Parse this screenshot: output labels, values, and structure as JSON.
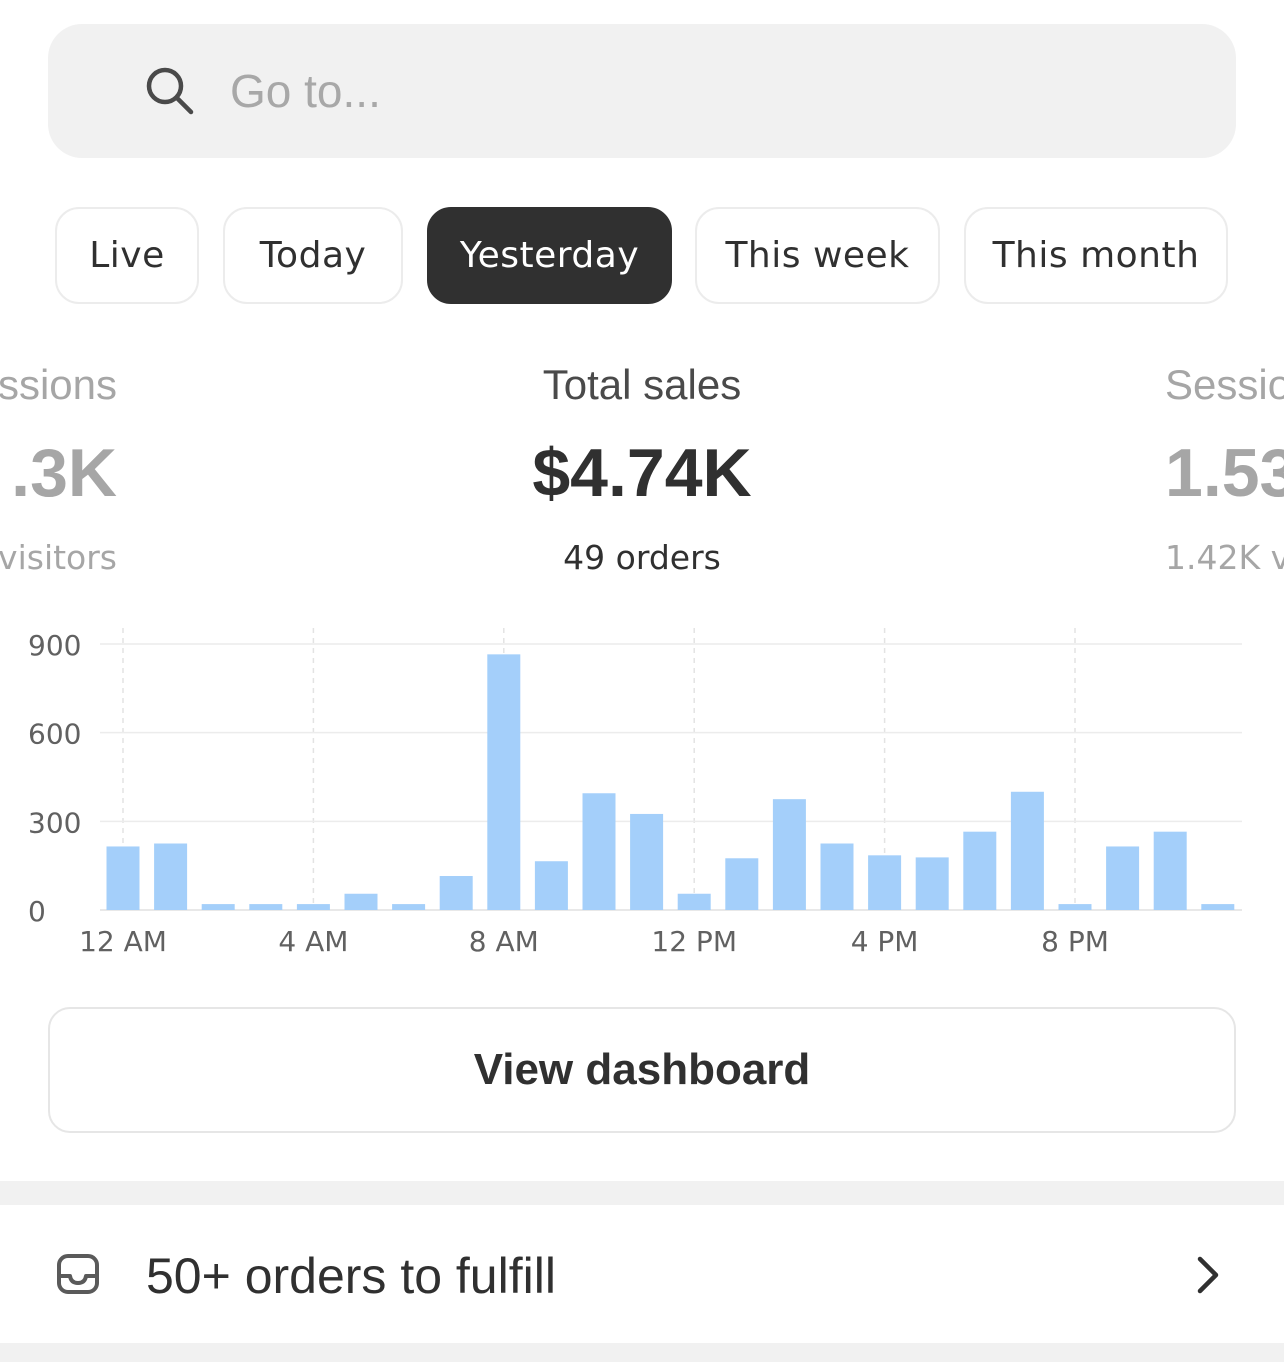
{
  "search": {
    "placeholder": "Go to..."
  },
  "tabs": [
    {
      "label": "Live",
      "active": false
    },
    {
      "label": "Today",
      "active": false
    },
    {
      "label": "Yesterday",
      "active": true
    },
    {
      "label": "This week",
      "active": false
    },
    {
      "label": "This month",
      "active": false
    }
  ],
  "metrics": {
    "left": {
      "label": "ssions",
      "value": ".3K",
      "sub": "visitors"
    },
    "center": {
      "label": "Total sales",
      "value": "$4.74K",
      "sub": "49 orders"
    },
    "right": {
      "label": "Sessio",
      "value": "1.53",
      "sub": "1.42K v"
    }
  },
  "chart_data": {
    "type": "bar",
    "categories": [
      "12 AM",
      "1 AM",
      "2 AM",
      "3 AM",
      "4 AM",
      "5 AM",
      "6 AM",
      "7 AM",
      "8 AM",
      "9 AM",
      "10 AM",
      "11 AM",
      "12 PM",
      "1 PM",
      "2 PM",
      "3 PM",
      "4 PM",
      "5 PM",
      "6 PM",
      "7 PM",
      "8 PM",
      "9 PM",
      "10 PM",
      "11 PM"
    ],
    "values": [
      215,
      225,
      20,
      20,
      20,
      55,
      20,
      115,
      865,
      165,
      395,
      325,
      55,
      175,
      375,
      225,
      185,
      178,
      265,
      400,
      20,
      215,
      265,
      20
    ],
    "ylim": [
      0,
      900
    ],
    "yticks": [
      "0",
      "300",
      "600",
      "900"
    ],
    "ytick_values": [
      0,
      300,
      600,
      900
    ],
    "xticks": [
      {
        "label": "12 AM",
        "index": 0
      },
      {
        "label": "4 AM",
        "index": 4
      },
      {
        "label": "8 AM",
        "index": 8
      },
      {
        "label": "12 PM",
        "index": 12
      },
      {
        "label": "4 PM",
        "index": 16
      },
      {
        "label": "8 PM",
        "index": 20
      }
    ],
    "bar_color": "#a4cffa",
    "grid": true
  },
  "actions": {
    "view_dashboard": "View dashboard"
  },
  "orders": {
    "label": "50+ orders to fulfill"
  }
}
